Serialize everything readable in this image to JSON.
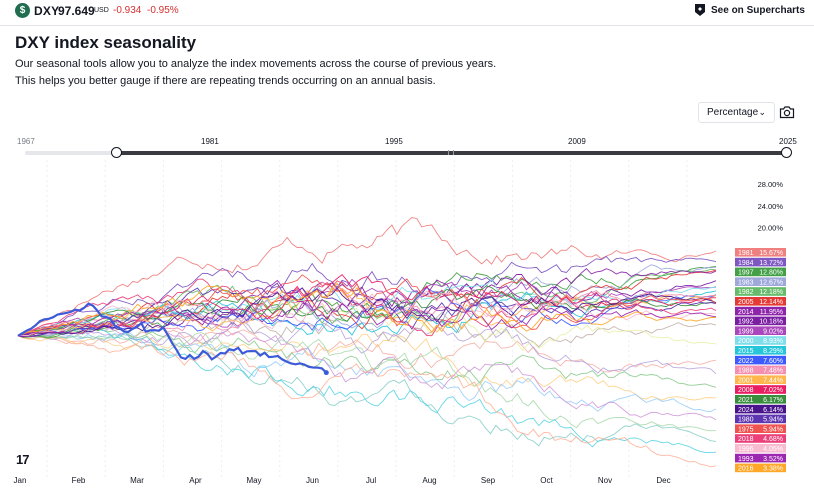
{
  "header": {
    "symbol_logo_letter": "$",
    "symbol": "DXY",
    "price": "97.649",
    "currency": "USD",
    "change": "-0.934",
    "change_percent": "-0.95%",
    "supercharts_link": "See on Supercharts",
    "change_color": "#d32f2f"
  },
  "page": {
    "title": "DXY index seasonality",
    "description_line1": "Our seasonal tools allow you to analyze the index movements across the course of previous years.",
    "description_line2": "This helps you better gauge if there are repeating trends occurring on an annual basis."
  },
  "controls": {
    "mode_label": "Percentage",
    "mode_chevron_icon": "chevron-down-icon",
    "snapshot_icon": "camera-icon"
  },
  "timeline": {
    "start_label": "1967",
    "ticks": [
      "1981",
      "1995",
      "2009"
    ],
    "end_label": "2025"
  },
  "branding": {
    "logo_text": "17"
  },
  "chart_data": {
    "type": "line",
    "x_ticks": [
      "Jan",
      "Feb",
      "Mar",
      "Apr",
      "May",
      "Jun",
      "Jul",
      "Aug",
      "Sep",
      "Oct",
      "Nov",
      "Dec"
    ],
    "y_ticks": [
      "28.00%",
      "24.00%",
      "20.00%"
    ],
    "y_tick_values": [
      28,
      24,
      20
    ],
    "ylim": [
      -27,
      31
    ],
    "grid": true,
    "legend": "right",
    "current_year": {
      "name": "2025",
      "color": "#3d5bd9",
      "end_month": 5.3,
      "end_value": -6.8
    },
    "series": [
      {
        "name": "1981",
        "value": 15.67,
        "color": "#f08080"
      },
      {
        "name": "1984",
        "value": 13.72,
        "color": "#7e57c2"
      },
      {
        "name": "1997",
        "value": 12.8,
        "color": "#43a047"
      },
      {
        "name": "1983",
        "value": 12.67,
        "color": "#9fa8da"
      },
      {
        "name": "1982",
        "value": 12.18,
        "color": "#66bb6a"
      },
      {
        "name": "2005",
        "value": 12.14,
        "color": "#e53935"
      },
      {
        "name": "2014",
        "value": 11.95,
        "color": "#8e24aa"
      },
      {
        "name": "1992",
        "value": 10.18,
        "color": "#7b1fa2"
      },
      {
        "name": "1999",
        "value": 9.02,
        "color": "#ab47bc"
      },
      {
        "name": "2000",
        "value": 8.93,
        "color": "#80deea"
      },
      {
        "name": "2015",
        "value": 8.29,
        "color": "#26c6da"
      },
      {
        "name": "2022",
        "value": 7.6,
        "color": "#3d5afe"
      },
      {
        "name": "1988",
        "value": 7.48,
        "color": "#f48fb1"
      },
      {
        "name": "2001",
        "value": 7.44,
        "color": "#ffb74d"
      },
      {
        "name": "2008",
        "value": 7.02,
        "color": "#e91e63"
      },
      {
        "name": "2021",
        "value": 6.17,
        "color": "#388e3c"
      },
      {
        "name": "2024",
        "value": 6.14,
        "color": "#4a148c"
      },
      {
        "name": "1980",
        "value": 5.94,
        "color": "#5e35b1"
      },
      {
        "name": "1975",
        "value": 5.94,
        "color": "#ef5350"
      },
      {
        "name": "2018",
        "value": 4.68,
        "color": "#ec407a"
      },
      {
        "name": "1996",
        "value": 4.05,
        "color": "#f8bbd0"
      },
      {
        "name": "1993",
        "value": 3.52,
        "color": "#9c27b0"
      },
      {
        "name": "2016",
        "value": 3.38,
        "color": "#ffa726"
      }
    ],
    "background_series": [
      {
        "end_value": -4.5,
        "color": "#f4a9a0"
      },
      {
        "end_value": -7.0,
        "color": "#b39ddb"
      },
      {
        "end_value": -9.5,
        "color": "#81c784"
      },
      {
        "end_value": -11.5,
        "color": "#ffcc80"
      },
      {
        "end_value": -13.5,
        "color": "#90caf9"
      },
      {
        "end_value": -15.5,
        "color": "#ce93d8"
      },
      {
        "end_value": -17.5,
        "color": "#a5d6a7"
      },
      {
        "end_value": -19.5,
        "color": "#80cbc4"
      },
      {
        "end_value": -21.5,
        "color": "#4dd0e1"
      },
      {
        "end_value": -24.0,
        "color": "#ffab91"
      },
      {
        "end_value": 2.0,
        "color": "#bcaaa4"
      },
      {
        "end_value": -1.5,
        "color": "#e6ee9c"
      }
    ]
  }
}
